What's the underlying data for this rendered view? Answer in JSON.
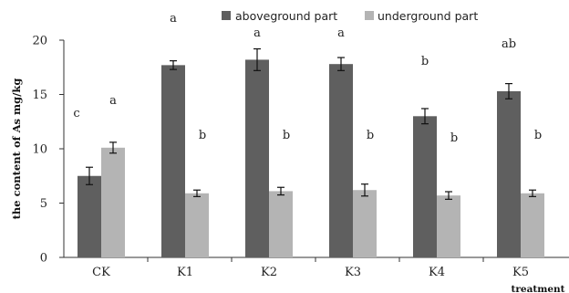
{
  "chart_data": {
    "type": "bar",
    "categories": [
      "CK",
      "K1",
      "K2",
      "K3",
      "K4",
      "K5"
    ],
    "series": [
      {
        "name": "aboveground part",
        "color": "#5f5f5f",
        "values": [
          7.5,
          17.7,
          18.2,
          17.8,
          13.0,
          15.3
        ],
        "errors": [
          0.8,
          0.4,
          1.0,
          0.6,
          0.7,
          0.7
        ],
        "letters": [
          "c",
          "a",
          "a",
          "a",
          "b",
          "ab"
        ]
      },
      {
        "name": "underground part",
        "color": "#b4b4b4",
        "values": [
          10.1,
          5.9,
          6.1,
          6.2,
          5.7,
          5.9
        ],
        "errors": [
          0.5,
          0.3,
          0.35,
          0.55,
          0.35,
          0.3
        ],
        "letters": [
          "a",
          "b",
          "b",
          "b",
          "b",
          "b"
        ]
      }
    ],
    "ylabel": "the content of As mg/kg",
    "xlabel": "treatment",
    "ylim": [
      0,
      20
    ],
    "yticks": [
      "0",
      "5",
      "10",
      "15",
      "20"
    ],
    "legend": "top",
    "grid": false
  }
}
